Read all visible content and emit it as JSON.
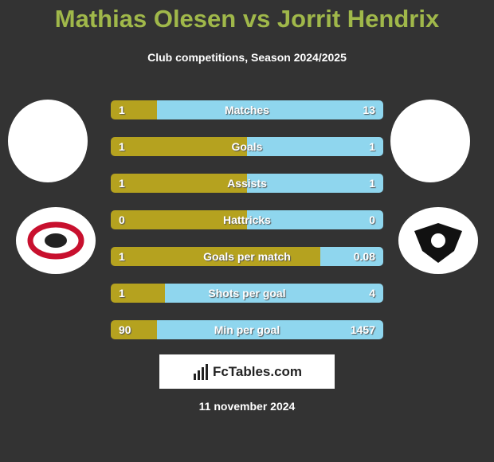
{
  "header": {
    "title": "Mathias Olesen vs Jorrit Hendrix",
    "subtitle": "Club competitions, Season 2024/2025"
  },
  "colors": {
    "left": "#b5a21f",
    "right": "#8fd6ee"
  },
  "rows": [
    {
      "label": "Matches",
      "left": 1,
      "right": 13
    },
    {
      "label": "Goals",
      "left": 1,
      "right": 1
    },
    {
      "label": "Assists",
      "left": 1,
      "right": 1
    },
    {
      "label": "Hattricks",
      "left": 0,
      "right": 0
    },
    {
      "label": "Goals per match",
      "left": 1,
      "right": 0.08
    },
    {
      "label": "Shots per goal",
      "left": 1,
      "right": 4
    },
    {
      "label": "Min per goal",
      "left": 90,
      "right": 1457
    }
  ],
  "footer": {
    "brand": "FcTables.com",
    "date": "11 november 2024"
  }
}
